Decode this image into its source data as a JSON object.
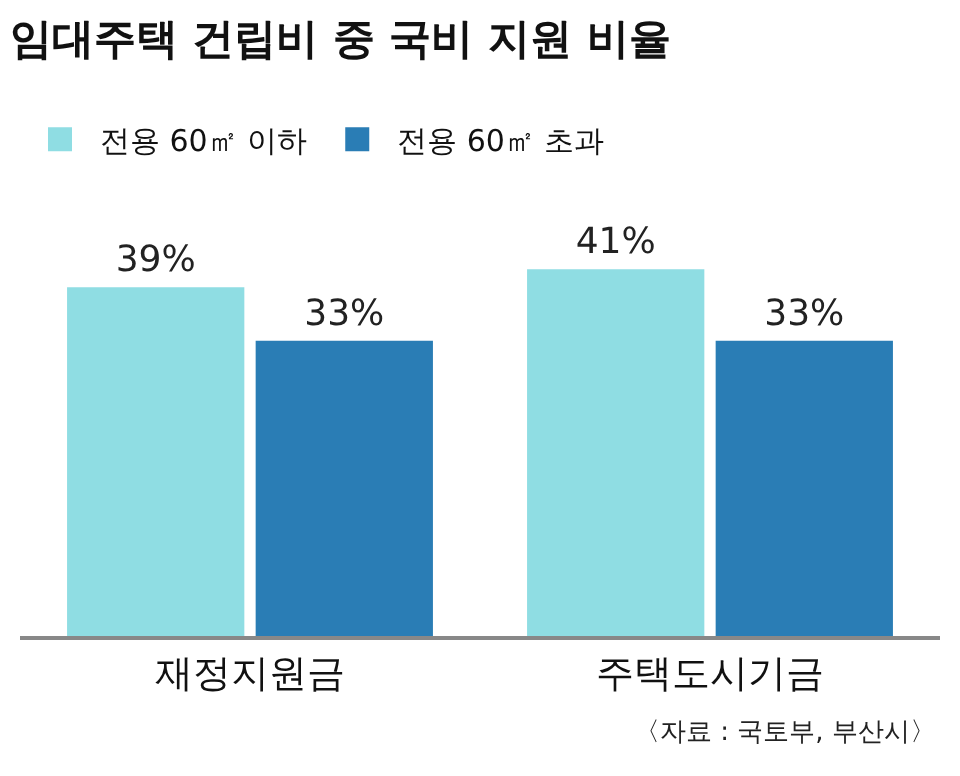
{
  "chart_data": {
    "type": "bar",
    "title": "임대주택 건립비 중 국비 지원 비율",
    "categories": [
      "재정지원금",
      "주택도시기금"
    ],
    "series": [
      {
        "name": "전용 60㎡ 이하",
        "color": "#8fdde3",
        "values": [
          39,
          41
        ],
        "value_labels": [
          "39%",
          "41%"
        ]
      },
      {
        "name": "전용 60㎡ 초과",
        "color": "#2a7db5",
        "values": [
          33,
          33
        ],
        "value_labels": [
          "33%",
          "33%"
        ]
      }
    ],
    "legend": "top left",
    "annotations": [
      "〈자료 : 국토부, 부산시〉"
    ]
  }
}
